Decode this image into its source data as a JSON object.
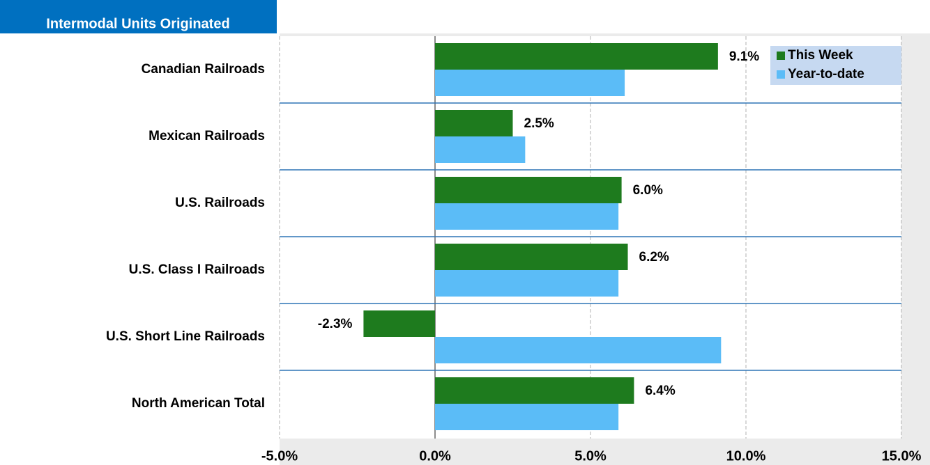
{
  "chart_data": {
    "type": "hbar",
    "title": "Intermodal Units Originated",
    "categories": [
      "Canadian Railroads",
      "Mexican Railroads",
      "U.S. Railroads",
      "U.S. Class I Railroads",
      "U.S. Short Line Railroads",
      "North American Total"
    ],
    "series": [
      {
        "name": "This Week",
        "color": "#1e7b1e",
        "values": [
          9.1,
          2.5,
          6.0,
          6.2,
          -2.3,
          6.4
        ],
        "value_labels": [
          "9.1%",
          "2.5%",
          "6.0%",
          "6.2%",
          "-2.3%",
          "6.4%"
        ]
      },
      {
        "name": "Year-to-date",
        "color": "#5bbcf7",
        "values": [
          6.1,
          2.9,
          5.9,
          5.9,
          9.2,
          5.9
        ]
      }
    ],
    "xlim": [
      -5,
      15
    ],
    "xticks": [
      {
        "value": -5,
        "label": "-5.0%"
      },
      {
        "value": 0,
        "label": "0.0%"
      },
      {
        "value": 5,
        "label": "5.0%"
      },
      {
        "value": 10,
        "label": "10.0%"
      },
      {
        "value": 15,
        "label": "15.0%"
      }
    ],
    "grid": true,
    "legend": "upper right"
  }
}
